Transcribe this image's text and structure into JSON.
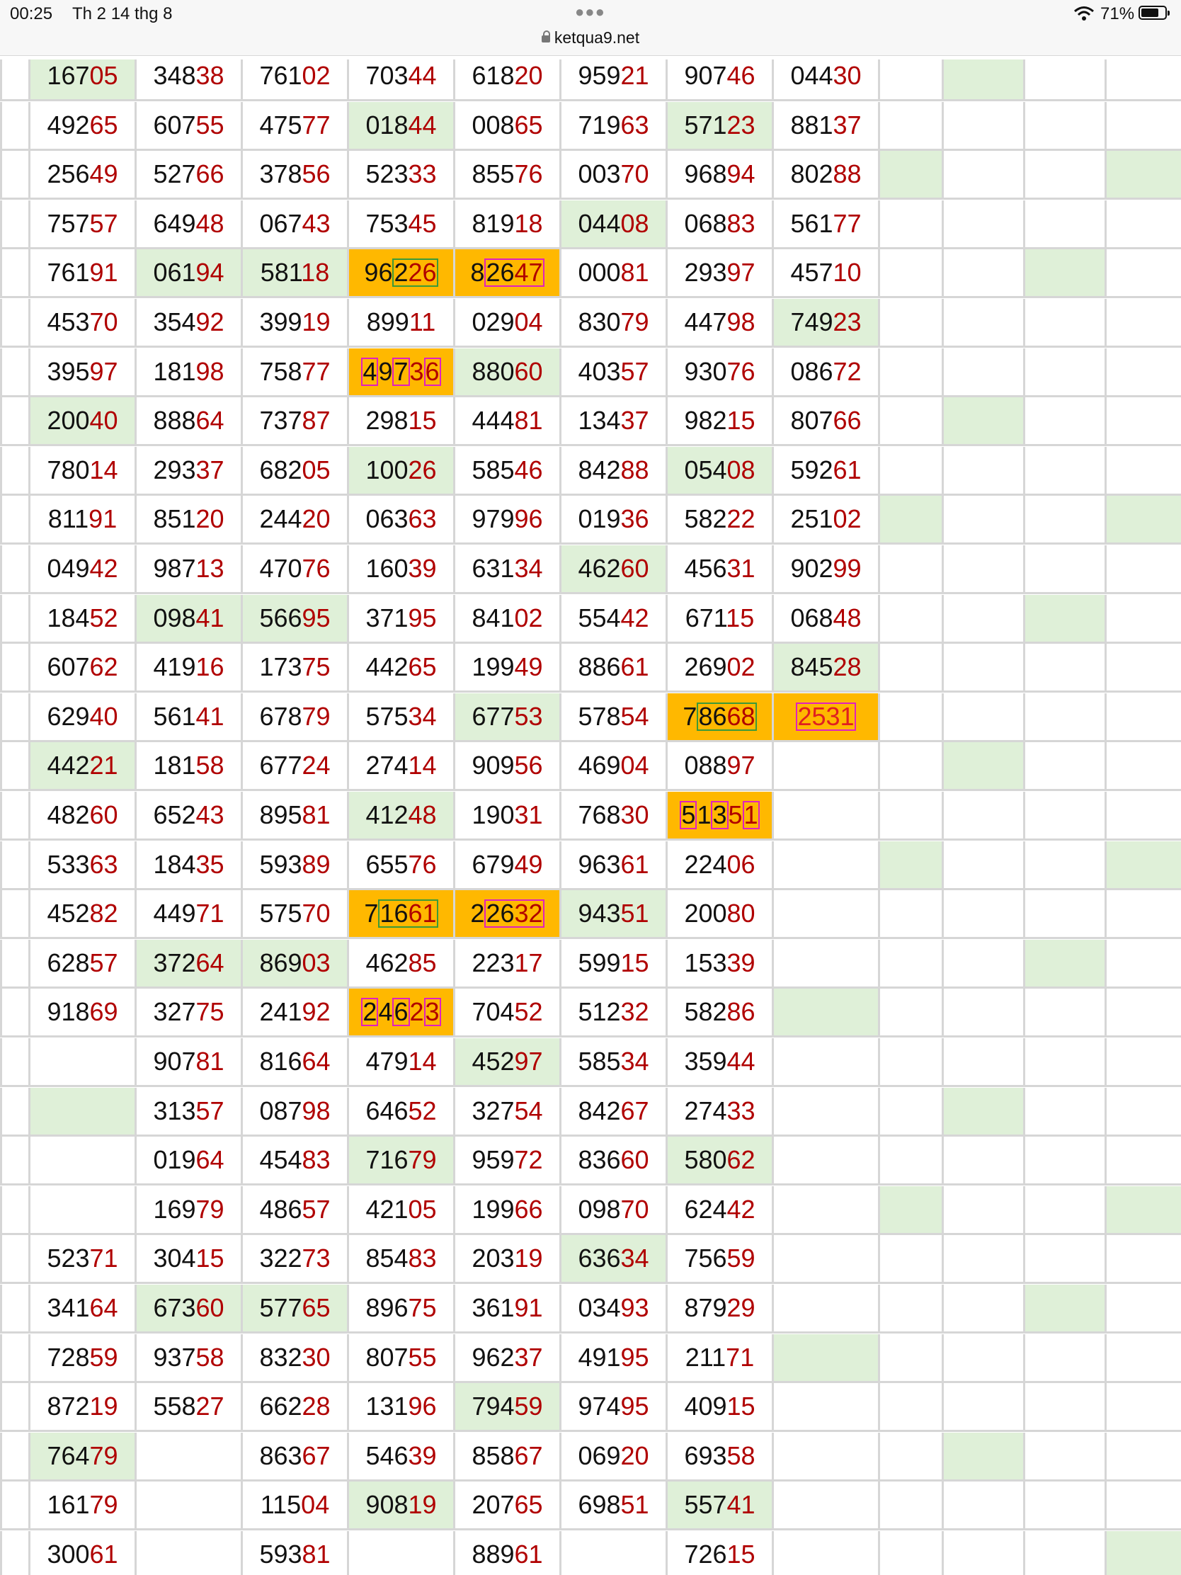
{
  "status": {
    "time": "00:25",
    "date": "Th 2 14 thg 8",
    "battery": "71%",
    "url": "ketqua9.net"
  },
  "columns_x": [
    0,
    40,
    190,
    340,
    490,
    640,
    790,
    940,
    1090,
    1240,
    1330,
    1445,
    1560,
    1668
  ],
  "rows": [
    [
      {
        "v": ""
      },
      {
        "v": "16705",
        "g": 1
      },
      {
        "v": "34838"
      },
      {
        "v": "76102"
      },
      {
        "v": "70344"
      },
      {
        "v": "61820"
      },
      {
        "v": "95921"
      },
      {
        "v": "90746"
      },
      {
        "v": "04430"
      },
      {
        "v": ""
      },
      {
        "v": "",
        "g": 1
      },
      {
        "v": ""
      },
      {
        "v": ""
      }
    ],
    [
      {
        "v": ""
      },
      {
        "v": "49265"
      },
      {
        "v": "60755"
      },
      {
        "v": "47577"
      },
      {
        "v": "01844",
        "g": 1
      },
      {
        "v": "00865"
      },
      {
        "v": "71963"
      },
      {
        "v": "57123",
        "g": 1
      },
      {
        "v": "88137"
      },
      {
        "v": ""
      },
      {
        "v": ""
      },
      {
        "v": ""
      },
      {
        "v": ""
      }
    ],
    [
      {
        "v": ""
      },
      {
        "v": "25649"
      },
      {
        "v": "52766"
      },
      {
        "v": "37856"
      },
      {
        "v": "52333"
      },
      {
        "v": "85576"
      },
      {
        "v": "00370"
      },
      {
        "v": "96894"
      },
      {
        "v": "80288"
      },
      {
        "v": "",
        "g": 1
      },
      {
        "v": ""
      },
      {
        "v": ""
      },
      {
        "v": "",
        "g": 1
      }
    ],
    [
      {
        "v": ""
      },
      {
        "v": "75757"
      },
      {
        "v": "64948"
      },
      {
        "v": "06743"
      },
      {
        "v": "75345"
      },
      {
        "v": "81918"
      },
      {
        "v": "04408",
        "g": 1
      },
      {
        "v": "06883"
      },
      {
        "v": "56177"
      },
      {
        "v": ""
      },
      {
        "v": ""
      },
      {
        "v": ""
      },
      {
        "v": ""
      }
    ],
    [
      {
        "v": ""
      },
      {
        "v": "76191"
      },
      {
        "v": "06194",
        "g": 1
      },
      {
        "v": "58118",
        "g": 1
      },
      {
        "v": "96226",
        "o": 1,
        "m": "g34"
      },
      {
        "v": "82647",
        "o": 1,
        "m": "b2345"
      },
      {
        "v": "00081"
      },
      {
        "v": "29397"
      },
      {
        "v": "45710"
      },
      {
        "v": ""
      },
      {
        "v": ""
      },
      {
        "v": "",
        "g": 1
      },
      {
        "v": ""
      }
    ],
    [
      {
        "v": ""
      },
      {
        "v": "45370"
      },
      {
        "v": "35492"
      },
      {
        "v": "39919"
      },
      {
        "v": "89911"
      },
      {
        "v": "02904"
      },
      {
        "v": "83079"
      },
      {
        "v": "44798"
      },
      {
        "v": "74923",
        "g": 1
      },
      {
        "v": ""
      },
      {
        "v": ""
      },
      {
        "v": ""
      },
      {
        "v": ""
      }
    ],
    [
      {
        "v": ""
      },
      {
        "v": "39597"
      },
      {
        "v": "18198"
      },
      {
        "v": "75877"
      },
      {
        "v": "49736",
        "o": 1,
        "m": "b1b3b5"
      },
      {
        "v": "88060",
        "g": 1
      },
      {
        "v": "40357"
      },
      {
        "v": "93076"
      },
      {
        "v": "08672"
      },
      {
        "v": ""
      },
      {
        "v": ""
      },
      {
        "v": ""
      },
      {
        "v": ""
      }
    ],
    [
      {
        "v": ""
      },
      {
        "v": "20040",
        "g": 1
      },
      {
        "v": "88864"
      },
      {
        "v": "73787"
      },
      {
        "v": "29815"
      },
      {
        "v": "44481"
      },
      {
        "v": "13437"
      },
      {
        "v": "98215"
      },
      {
        "v": "80766"
      },
      {
        "v": ""
      },
      {
        "v": "",
        "g": 1
      },
      {
        "v": ""
      },
      {
        "v": ""
      }
    ],
    [
      {
        "v": ""
      },
      {
        "v": "78014"
      },
      {
        "v": "29337"
      },
      {
        "v": "68205"
      },
      {
        "v": "10026",
        "g": 1
      },
      {
        "v": "58546"
      },
      {
        "v": "84288"
      },
      {
        "v": "05408",
        "g": 1
      },
      {
        "v": "59261"
      },
      {
        "v": ""
      },
      {
        "v": ""
      },
      {
        "v": ""
      },
      {
        "v": ""
      }
    ],
    [
      {
        "v": ""
      },
      {
        "v": "81191"
      },
      {
        "v": "85120"
      },
      {
        "v": "24420"
      },
      {
        "v": "06363"
      },
      {
        "v": "97996"
      },
      {
        "v": "01936"
      },
      {
        "v": "58222"
      },
      {
        "v": "25102"
      },
      {
        "v": "",
        "g": 1
      },
      {
        "v": ""
      },
      {
        "v": ""
      },
      {
        "v": "",
        "g": 1
      }
    ],
    [
      {
        "v": ""
      },
      {
        "v": "04942"
      },
      {
        "v": "98713"
      },
      {
        "v": "47076"
      },
      {
        "v": "16039"
      },
      {
        "v": "63134"
      },
      {
        "v": "46260",
        "g": 1
      },
      {
        "v": "45631"
      },
      {
        "v": "90299"
      },
      {
        "v": ""
      },
      {
        "v": ""
      },
      {
        "v": ""
      },
      {
        "v": ""
      }
    ],
    [
      {
        "v": ""
      },
      {
        "v": "18452"
      },
      {
        "v": "09841",
        "g": 1
      },
      {
        "v": "56695",
        "g": 1
      },
      {
        "v": "37195"
      },
      {
        "v": "84102"
      },
      {
        "v": "55442"
      },
      {
        "v": "67115"
      },
      {
        "v": "06848"
      },
      {
        "v": ""
      },
      {
        "v": ""
      },
      {
        "v": "",
        "g": 1
      },
      {
        "v": ""
      }
    ],
    [
      {
        "v": ""
      },
      {
        "v": "60762"
      },
      {
        "v": "41916"
      },
      {
        "v": "17375"
      },
      {
        "v": "44265"
      },
      {
        "v": "19949"
      },
      {
        "v": "88661"
      },
      {
        "v": "26902"
      },
      {
        "v": "84528",
        "g": 1
      },
      {
        "v": ""
      },
      {
        "v": ""
      },
      {
        "v": ""
      },
      {
        "v": ""
      }
    ],
    [
      {
        "v": ""
      },
      {
        "v": "62940"
      },
      {
        "v": "56141"
      },
      {
        "v": "67879"
      },
      {
        "v": "57534"
      },
      {
        "v": "67753",
        "g": 1
      },
      {
        "v": "57854"
      },
      {
        "v": "78668",
        "o": 1,
        "m": "g2345"
      },
      {
        "v": "2531",
        "o": 1,
        "m": "R"
      },
      {
        "v": ""
      },
      {
        "v": ""
      },
      {
        "v": ""
      },
      {
        "v": ""
      }
    ],
    [
      {
        "v": ""
      },
      {
        "v": "44221",
        "g": 1
      },
      {
        "v": "18158"
      },
      {
        "v": "67724"
      },
      {
        "v": "27414"
      },
      {
        "v": "90956"
      },
      {
        "v": "46904"
      },
      {
        "v": "08897"
      },
      {
        "v": ""
      },
      {
        "v": ""
      },
      {
        "v": "",
        "g": 1
      },
      {
        "v": ""
      },
      {
        "v": ""
      }
    ],
    [
      {
        "v": ""
      },
      {
        "v": "48260"
      },
      {
        "v": "65243"
      },
      {
        "v": "89581"
      },
      {
        "v": "41248",
        "g": 1
      },
      {
        "v": "19031"
      },
      {
        "v": "76830"
      },
      {
        "v": "51351",
        "o": 1,
        "m": "b1b3b5"
      },
      {
        "v": ""
      },
      {
        "v": ""
      },
      {
        "v": ""
      },
      {
        "v": ""
      },
      {
        "v": ""
      }
    ],
    [
      {
        "v": ""
      },
      {
        "v": "53363"
      },
      {
        "v": "18435"
      },
      {
        "v": "59389"
      },
      {
        "v": "65576"
      },
      {
        "v": "67949"
      },
      {
        "v": "96361"
      },
      {
        "v": "22406"
      },
      {
        "v": ""
      },
      {
        "v": "",
        "g": 1
      },
      {
        "v": ""
      },
      {
        "v": ""
      },
      {
        "v": "",
        "g": 1
      }
    ],
    [
      {
        "v": ""
      },
      {
        "v": "45282"
      },
      {
        "v": "44971"
      },
      {
        "v": "57570"
      },
      {
        "v": "71661",
        "o": 1,
        "m": "g2345"
      },
      {
        "v": "22632",
        "o": 1,
        "m": "b2345"
      },
      {
        "v": "94351",
        "g": 1
      },
      {
        "v": "20080"
      },
      {
        "v": ""
      },
      {
        "v": ""
      },
      {
        "v": ""
      },
      {
        "v": ""
      },
      {
        "v": ""
      }
    ],
    [
      {
        "v": ""
      },
      {
        "v": "62857"
      },
      {
        "v": "37264",
        "g": 1
      },
      {
        "v": "86903",
        "g": 1
      },
      {
        "v": "46285"
      },
      {
        "v": "22317"
      },
      {
        "v": "59915"
      },
      {
        "v": "15339"
      },
      {
        "v": ""
      },
      {
        "v": ""
      },
      {
        "v": ""
      },
      {
        "v": "",
        "g": 1
      },
      {
        "v": ""
      }
    ],
    [
      {
        "v": ""
      },
      {
        "v": "91869"
      },
      {
        "v": "32775"
      },
      {
        "v": "24192"
      },
      {
        "v": "24623",
        "o": 1,
        "m": "b1b3b5"
      },
      {
        "v": "70452"
      },
      {
        "v": "51232"
      },
      {
        "v": "58286"
      },
      {
        "v": "",
        "g": 1
      },
      {
        "v": ""
      },
      {
        "v": ""
      },
      {
        "v": ""
      },
      {
        "v": ""
      }
    ],
    [
      {
        "v": ""
      },
      {
        "v": ""
      },
      {
        "v": "90781"
      },
      {
        "v": "81664"
      },
      {
        "v": "47914"
      },
      {
        "v": "45297",
        "g": 1
      },
      {
        "v": "58534"
      },
      {
        "v": "35944"
      },
      {
        "v": ""
      },
      {
        "v": ""
      },
      {
        "v": ""
      },
      {
        "v": ""
      },
      {
        "v": ""
      }
    ],
    [
      {
        "v": ""
      },
      {
        "v": "",
        "g": 1
      },
      {
        "v": "31357"
      },
      {
        "v": "08798"
      },
      {
        "v": "64652"
      },
      {
        "v": "32754"
      },
      {
        "v": "84267"
      },
      {
        "v": "27433"
      },
      {
        "v": ""
      },
      {
        "v": ""
      },
      {
        "v": "",
        "g": 1
      },
      {
        "v": ""
      },
      {
        "v": ""
      }
    ],
    [
      {
        "v": ""
      },
      {
        "v": ""
      },
      {
        "v": "01964"
      },
      {
        "v": "45483"
      },
      {
        "v": "71679",
        "g": 1
      },
      {
        "v": "95972"
      },
      {
        "v": "83660"
      },
      {
        "v": "58062",
        "g": 1
      },
      {
        "v": ""
      },
      {
        "v": ""
      },
      {
        "v": ""
      },
      {
        "v": ""
      },
      {
        "v": ""
      }
    ],
    [
      {
        "v": ""
      },
      {
        "v": ""
      },
      {
        "v": "16979"
      },
      {
        "v": "48657"
      },
      {
        "v": "42105"
      },
      {
        "v": "19966"
      },
      {
        "v": "09870"
      },
      {
        "v": "62442"
      },
      {
        "v": ""
      },
      {
        "v": "",
        "g": 1
      },
      {
        "v": ""
      },
      {
        "v": ""
      },
      {
        "v": "",
        "g": 1
      }
    ],
    [
      {
        "v": ""
      },
      {
        "v": "52371"
      },
      {
        "v": "30415"
      },
      {
        "v": "32273"
      },
      {
        "v": "85483"
      },
      {
        "v": "20319"
      },
      {
        "v": "63634",
        "g": 1
      },
      {
        "v": "75659"
      },
      {
        "v": ""
      },
      {
        "v": ""
      },
      {
        "v": ""
      },
      {
        "v": ""
      },
      {
        "v": ""
      }
    ],
    [
      {
        "v": ""
      },
      {
        "v": "34164"
      },
      {
        "v": "67360",
        "g": 1
      },
      {
        "v": "57765",
        "g": 1
      },
      {
        "v": "89675"
      },
      {
        "v": "36191"
      },
      {
        "v": "03493"
      },
      {
        "v": "87929"
      },
      {
        "v": ""
      },
      {
        "v": ""
      },
      {
        "v": ""
      },
      {
        "v": "",
        "g": 1
      },
      {
        "v": ""
      }
    ],
    [
      {
        "v": ""
      },
      {
        "v": "72859"
      },
      {
        "v": "93758"
      },
      {
        "v": "83230"
      },
      {
        "v": "80755"
      },
      {
        "v": "96237"
      },
      {
        "v": "49195"
      },
      {
        "v": "21171"
      },
      {
        "v": "",
        "g": 1
      },
      {
        "v": ""
      },
      {
        "v": ""
      },
      {
        "v": ""
      },
      {
        "v": ""
      }
    ],
    [
      {
        "v": ""
      },
      {
        "v": "87219"
      },
      {
        "v": "55827"
      },
      {
        "v": "66228"
      },
      {
        "v": "13196"
      },
      {
        "v": "79459",
        "g": 1
      },
      {
        "v": "97495"
      },
      {
        "v": "40915"
      },
      {
        "v": ""
      },
      {
        "v": ""
      },
      {
        "v": ""
      },
      {
        "v": ""
      },
      {
        "v": ""
      }
    ],
    [
      {
        "v": ""
      },
      {
        "v": "76479",
        "g": 1
      },
      {
        "v": ""
      },
      {
        "v": "86367"
      },
      {
        "v": "54639"
      },
      {
        "v": "85867"
      },
      {
        "v": "06920"
      },
      {
        "v": "69358"
      },
      {
        "v": ""
      },
      {
        "v": ""
      },
      {
        "v": "",
        "g": 1
      },
      {
        "v": ""
      },
      {
        "v": ""
      }
    ],
    [
      {
        "v": ""
      },
      {
        "v": "16179"
      },
      {
        "v": ""
      },
      {
        "v": "11504"
      },
      {
        "v": "90819",
        "g": 1
      },
      {
        "v": "20765"
      },
      {
        "v": "69851"
      },
      {
        "v": "55741",
        "g": 1
      },
      {
        "v": ""
      },
      {
        "v": ""
      },
      {
        "v": ""
      },
      {
        "v": ""
      },
      {
        "v": ""
      }
    ],
    [
      {
        "v": ""
      },
      {
        "v": "30061"
      },
      {
        "v": ""
      },
      {
        "v": "59381"
      },
      {
        "v": ""
      },
      {
        "v": "88961"
      },
      {
        "v": ""
      },
      {
        "v": "72615"
      },
      {
        "v": ""
      },
      {
        "v": ""
      },
      {
        "v": ""
      },
      {
        "v": ""
      },
      {
        "v": "",
        "g": 1
      }
    ]
  ]
}
